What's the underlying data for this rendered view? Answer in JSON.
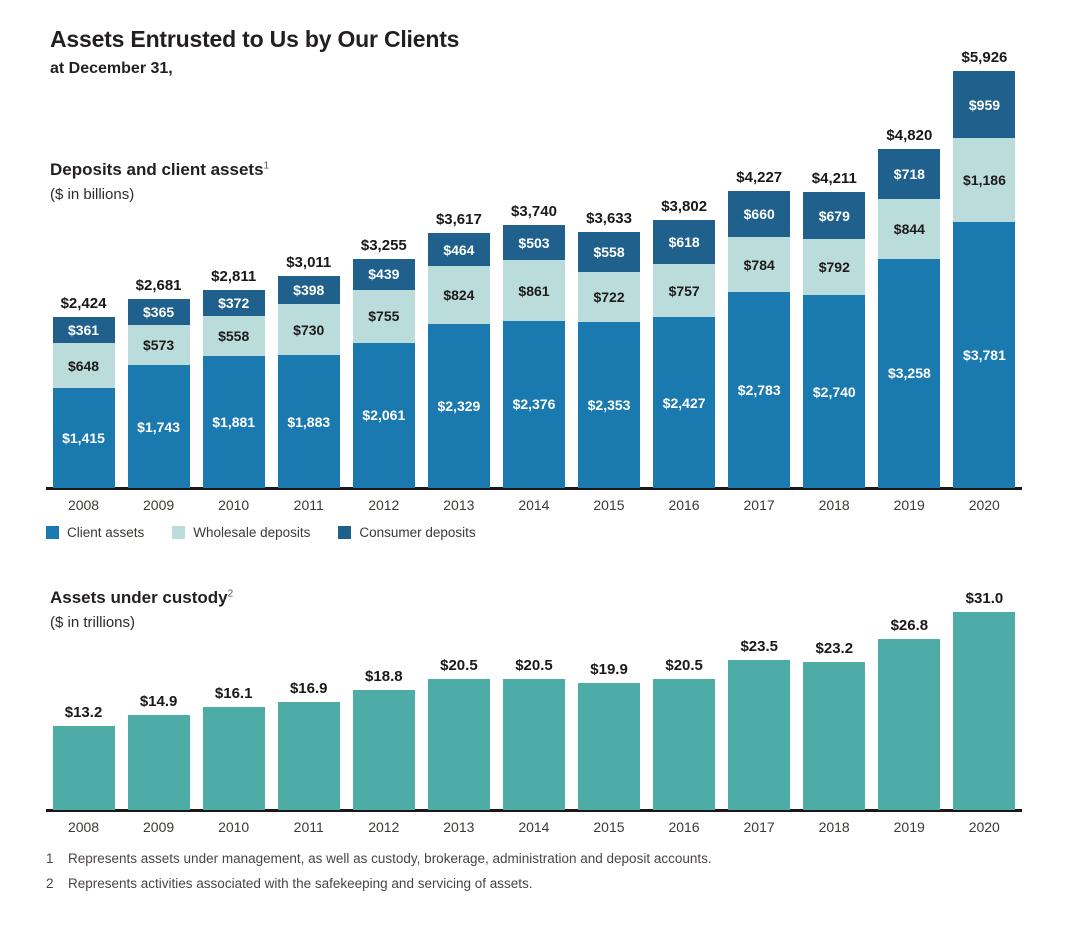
{
  "page": {
    "title": "Assets Entrusted to Us by Our Clients",
    "subtitle": "at December 31,"
  },
  "colors": {
    "client_assets": "#1a79ae",
    "wholesale_deposits": "#badcdb",
    "consumer_deposits": "#1f608c",
    "custody": "#4eaca6",
    "axis": "#1b1817"
  },
  "years": [
    "2008",
    "2009",
    "2010",
    "2011",
    "2012",
    "2013",
    "2014",
    "2015",
    "2016",
    "2017",
    "2018",
    "2019",
    "2020"
  ],
  "deposits_chart": {
    "heading": "Deposits and client assets",
    "heading_sup": "1",
    "unit": "($ in billions)",
    "legend": [
      {
        "label": "Client assets",
        "color": "#1a79ae"
      },
      {
        "label": "Wholesale deposits",
        "color": "#badcdb"
      },
      {
        "label": "Consumer deposits",
        "color": "#1f608c"
      }
    ]
  },
  "custody_chart": {
    "heading": "Assets under custody",
    "heading_sup": "2",
    "unit": "($ in trillions)"
  },
  "footnotes": [
    {
      "num": "1",
      "text": "Represents assets under management, as well as custody, brokerage, administration and deposit accounts."
    },
    {
      "num": "2",
      "text": "Represents activities associated with the safekeeping and servicing of assets."
    }
  ],
  "chart_data": [
    {
      "type": "bar",
      "subtype": "stacked",
      "title": "Deposits and client assets",
      "ylabel": "$ in billions",
      "categories": [
        "2008",
        "2009",
        "2010",
        "2011",
        "2012",
        "2013",
        "2014",
        "2015",
        "2016",
        "2017",
        "2018",
        "2019",
        "2020"
      ],
      "series": [
        {
          "name": "Client assets",
          "color": "#1a79ae",
          "label_color": "#ffffff",
          "values": [
            1415,
            1743,
            1881,
            1883,
            2061,
            2329,
            2376,
            2353,
            2427,
            2783,
            2740,
            3258,
            3781
          ]
        },
        {
          "name": "Wholesale deposits",
          "color": "#badcdb",
          "label_color": "#1e1b1a",
          "values": [
            648,
            573,
            558,
            730,
            755,
            824,
            861,
            722,
            757,
            784,
            792,
            844,
            1186
          ]
        },
        {
          "name": "Consumer deposits",
          "color": "#1f608c",
          "label_color": "#ffffff",
          "values": [
            361,
            365,
            372,
            398,
            439,
            464,
            503,
            558,
            618,
            660,
            679,
            718,
            959
          ]
        }
      ],
      "totals": [
        2424,
        2681,
        2811,
        3011,
        3255,
        3617,
        3740,
        3633,
        3802,
        4227,
        4211,
        4820,
        5926
      ],
      "ylim": [
        0,
        6400
      ],
      "legend_position": "bottom",
      "grid": false
    },
    {
      "type": "bar",
      "subtype": "simple",
      "title": "Assets under custody",
      "ylabel": "$ in trillions",
      "categories": [
        "2008",
        "2009",
        "2010",
        "2011",
        "2012",
        "2013",
        "2014",
        "2015",
        "2016",
        "2017",
        "2018",
        "2019",
        "2020"
      ],
      "values": [
        13.2,
        14.9,
        16.1,
        16.9,
        18.8,
        20.5,
        20.5,
        19.9,
        20.5,
        23.5,
        23.2,
        26.8,
        31.0
      ],
      "color": "#4eaca6",
      "ylim": [
        0,
        33
      ],
      "grid": false
    }
  ]
}
